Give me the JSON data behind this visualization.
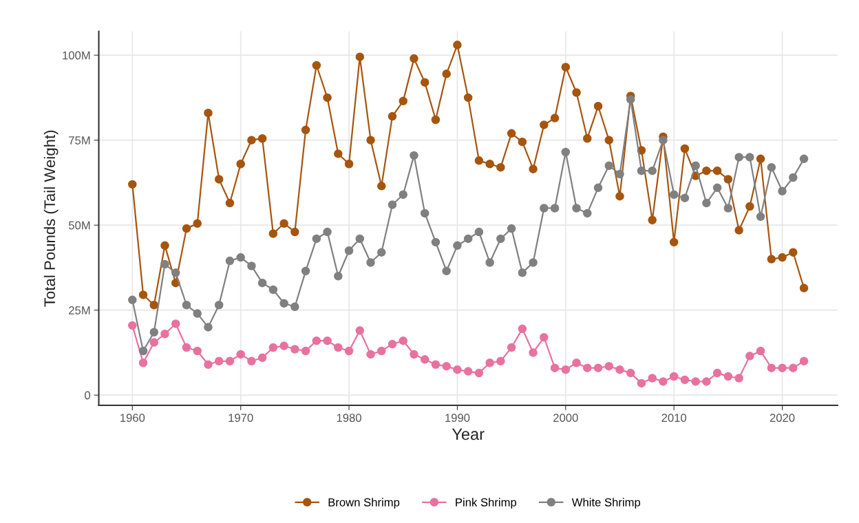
{
  "chart_data": {
    "type": "line",
    "xlabel": "Year",
    "ylabel": "Total Pounds (Tail Weight)",
    "x": [
      1960,
      1961,
      1962,
      1963,
      1964,
      1965,
      1966,
      1967,
      1968,
      1969,
      1970,
      1971,
      1972,
      1973,
      1974,
      1975,
      1976,
      1977,
      1978,
      1979,
      1980,
      1981,
      1982,
      1983,
      1984,
      1985,
      1986,
      1987,
      1988,
      1989,
      1990,
      1991,
      1992,
      1993,
      1994,
      1995,
      1996,
      1997,
      1998,
      1999,
      2000,
      2001,
      2002,
      2003,
      2004,
      2005,
      2006,
      2007,
      2008,
      2009,
      2010,
      2011,
      2012,
      2013,
      2014,
      2015,
      2016,
      2017,
      2018,
      2019,
      2020,
      2021,
      2022
    ],
    "series": [
      {
        "name": "Brown Shrimp",
        "color": "#a6550f",
        "values": [
          62,
          29.5,
          26.5,
          44,
          33,
          49,
          50.5,
          83,
          63.5,
          56.5,
          68,
          75,
          75.5,
          47.5,
          50.5,
          48,
          78,
          97,
          87.5,
          71,
          68,
          99.5,
          75,
          61.5,
          82,
          86.5,
          99,
          92,
          81,
          94.5,
          103,
          87.5,
          69,
          68,
          67,
          77,
          74.5,
          66.5,
          79.5,
          81.5,
          96.5,
          89,
          75.5,
          85,
          75,
          58.5,
          88,
          72,
          51.5,
          76,
          45,
          72.5,
          64.5,
          66,
          66,
          63.5,
          48.5,
          55.5,
          69.5,
          40,
          40.5,
          42,
          31.5
        ]
      },
      {
        "name": "Pink Shrimp",
        "color": "#e8729f",
        "values": [
          20.5,
          9.5,
          15.5,
          18,
          21,
          14,
          13,
          9,
          10,
          10,
          12,
          10,
          11,
          14,
          14.5,
          13.5,
          13,
          16,
          16,
          14,
          13,
          19,
          12,
          13,
          15,
          16,
          12,
          10.5,
          9,
          8.5,
          7.5,
          7,
          6.5,
          9.5,
          10,
          14,
          19.5,
          12.5,
          17,
          8,
          7.5,
          9.5,
          8,
          8,
          8.5,
          7.5,
          6.5,
          3.5,
          5,
          4,
          5.5,
          4.5,
          4,
          4,
          6.5,
          5.5,
          5,
          11.5,
          13,
          8,
          8,
          8,
          10
        ]
      },
      {
        "name": "White Shrimp",
        "color": "#808080",
        "values": [
          28,
          13,
          18.5,
          38.5,
          36,
          26.5,
          24,
          20,
          26.5,
          39.5,
          40.5,
          38,
          33,
          31,
          27,
          26,
          36.5,
          46,
          48,
          35,
          42.5,
          46,
          39,
          42,
          56,
          59,
          70.5,
          53.5,
          45,
          36.5,
          44,
          46,
          48,
          39,
          46,
          49,
          36,
          39,
          55,
          55,
          71.5,
          55,
          53.5,
          61,
          67.5,
          65,
          87,
          66,
          66,
          75,
          59,
          58,
          67.5,
          56.5,
          61,
          55,
          70,
          70,
          52.5,
          67,
          60,
          64,
          69.5
        ]
      }
    ],
    "xlim": [
      1956.9,
      2025.1
    ],
    "xticks": [
      1960,
      1970,
      1980,
      1990,
      2000,
      2010,
      2020
    ],
    "ylim": [
      -3,
      107
    ],
    "yticks": [
      0,
      {
        "value": 25,
        "label": "25M"
      },
      {
        "value": 50,
        "label": "50M"
      },
      {
        "value": 75,
        "label": "75M"
      },
      {
        "value": 100,
        "label": "100M"
      }
    ],
    "grid": true,
    "legend": "bottom",
    "marker": "circle",
    "line_style": "solid"
  }
}
